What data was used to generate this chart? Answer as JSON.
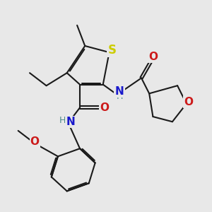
{
  "background_color": "#e8e8e8",
  "bond_color": "#1a1a1a",
  "bond_width": 1.5,
  "dbo": 0.06,
  "atom_colors": {
    "S": "#cccc00",
    "N": "#1a1acc",
    "O": "#cc1a1a",
    "C": "#1a1a1a",
    "NH_color": "#4a8a8a"
  }
}
